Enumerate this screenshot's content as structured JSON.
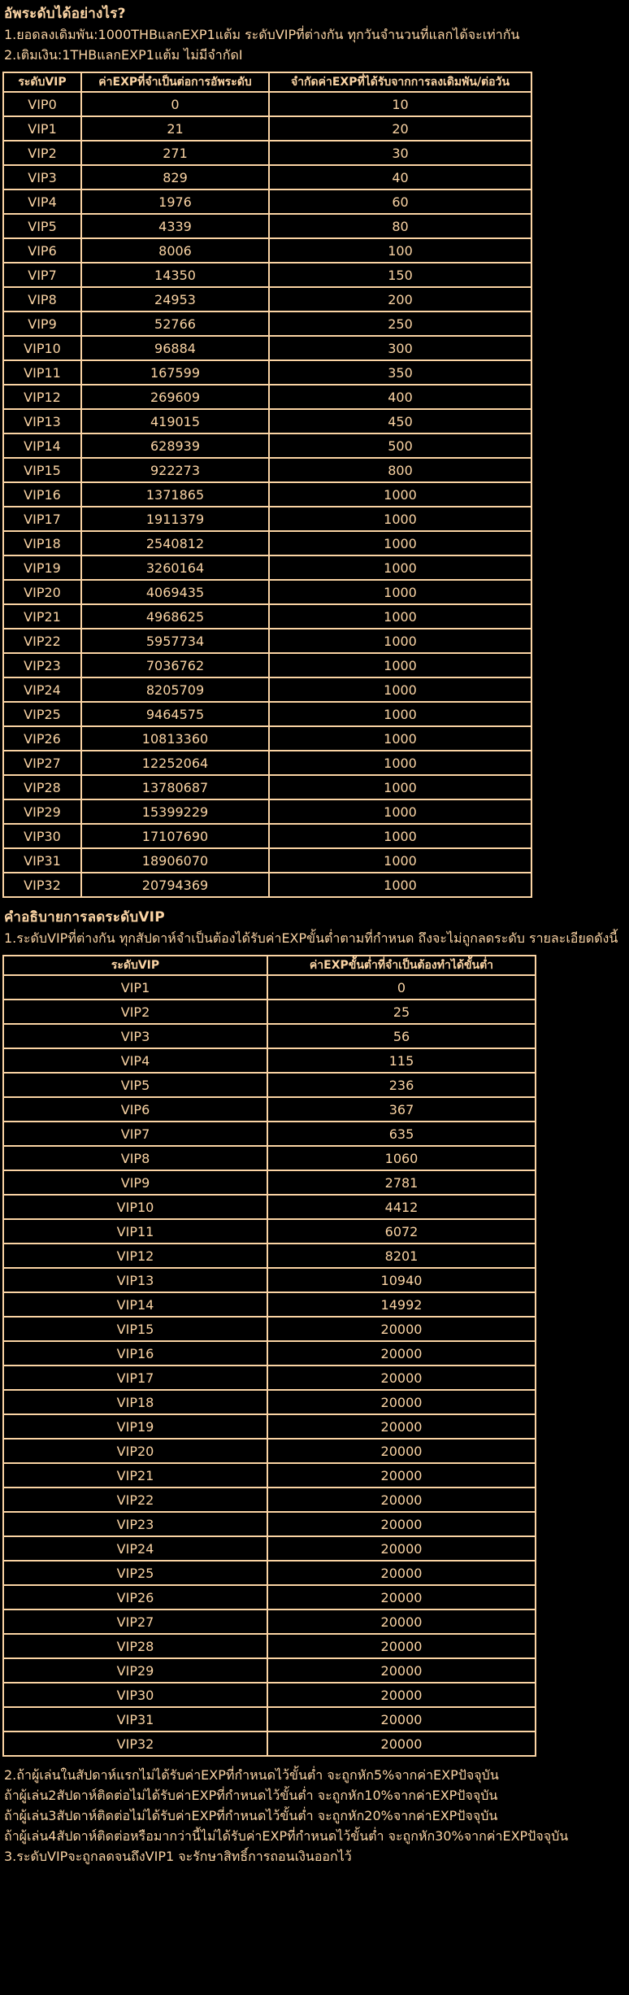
{
  "colors": {
    "background": "#000000",
    "text": "#fbd4a4",
    "table_border": "#fbd4a4"
  },
  "intro": {
    "title": "อัพระดับได้อย่างไร?",
    "lines": [
      "1.ยอดลงเดิมพัน:1000THBแลกEXP1แต้ม ระดับVIPที่ต่างกัน ทุกวันจำนวนที่แลกได้จะเท่ากัน",
      "2.เติมเงิน:1THBแลกEXP1แต้ม ไม่มีจำกัดI"
    ]
  },
  "levelup_table": {
    "headers": [
      "ระดับVIP",
      "ค่าEXPที่จำเป็นต่อการอัพระดับ",
      "จำกัดค่าEXPที่ได้รับจากการลงเดิมพัน/ต่อวัน"
    ],
    "rows": [
      [
        "VIP0",
        "0",
        "10"
      ],
      [
        "VIP1",
        "21",
        "20"
      ],
      [
        "VIP2",
        "271",
        "30"
      ],
      [
        "VIP3",
        "829",
        "40"
      ],
      [
        "VIP4",
        "1976",
        "60"
      ],
      [
        "VIP5",
        "4339",
        "80"
      ],
      [
        "VIP6",
        "8006",
        "100"
      ],
      [
        "VIP7",
        "14350",
        "150"
      ],
      [
        "VIP8",
        "24953",
        "200"
      ],
      [
        "VIP9",
        "52766",
        "250"
      ],
      [
        "VIP10",
        "96884",
        "300"
      ],
      [
        "VIP11",
        "167599",
        "350"
      ],
      [
        "VIP12",
        "269609",
        "400"
      ],
      [
        "VIP13",
        "419015",
        "450"
      ],
      [
        "VIP14",
        "628939",
        "500"
      ],
      [
        "VIP15",
        "922273",
        "800"
      ],
      [
        "VIP16",
        "1371865",
        "1000"
      ],
      [
        "VIP17",
        "1911379",
        "1000"
      ],
      [
        "VIP18",
        "2540812",
        "1000"
      ],
      [
        "VIP19",
        "3260164",
        "1000"
      ],
      [
        "VIP20",
        "4069435",
        "1000"
      ],
      [
        "VIP21",
        "4968625",
        "1000"
      ],
      [
        "VIP22",
        "5957734",
        "1000"
      ],
      [
        "VIP23",
        "7036762",
        "1000"
      ],
      [
        "VIP24",
        "8205709",
        "1000"
      ],
      [
        "VIP25",
        "9464575",
        "1000"
      ],
      [
        "VIP26",
        "10813360",
        "1000"
      ],
      [
        "VIP27",
        "12252064",
        "1000"
      ],
      [
        "VIP28",
        "13780687",
        "1000"
      ],
      [
        "VIP29",
        "15399229",
        "1000"
      ],
      [
        "VIP30",
        "17107690",
        "1000"
      ],
      [
        "VIP31",
        "18906070",
        "1000"
      ],
      [
        "VIP32",
        "20794369",
        "1000"
      ]
    ]
  },
  "demote": {
    "title": "คำอธิบายการลดระดับVIP",
    "line": "1.ระดับVIPที่ต่างกัน ทุกสัปดาห์จำเป็นต้องได้รับค่าEXPขั้นต่ำตามที่กำหนด ถึงจะไม่ถูกลดระดับ รายละเอียดดังนี้"
  },
  "weekly_table": {
    "headers": [
      "ระดับVIP",
      "ค่าEXPขั้นต่ำที่จำเป็นต้องทำได้ขั้นต่ำ"
    ],
    "rows": [
      [
        "VIP1",
        "0"
      ],
      [
        "VIP2",
        "25"
      ],
      [
        "VIP3",
        "56"
      ],
      [
        "VIP4",
        "115"
      ],
      [
        "VIP5",
        "236"
      ],
      [
        "VIP6",
        "367"
      ],
      [
        "VIP7",
        "635"
      ],
      [
        "VIP8",
        "1060"
      ],
      [
        "VIP9",
        "2781"
      ],
      [
        "VIP10",
        "4412"
      ],
      [
        "VIP11",
        "6072"
      ],
      [
        "VIP12",
        "8201"
      ],
      [
        "VIP13",
        "10940"
      ],
      [
        "VIP14",
        "14992"
      ],
      [
        "VIP15",
        "20000"
      ],
      [
        "VIP16",
        "20000"
      ],
      [
        "VIP17",
        "20000"
      ],
      [
        "VIP18",
        "20000"
      ],
      [
        "VIP19",
        "20000"
      ],
      [
        "VIP20",
        "20000"
      ],
      [
        "VIP21",
        "20000"
      ],
      [
        "VIP22",
        "20000"
      ],
      [
        "VIP23",
        "20000"
      ],
      [
        "VIP24",
        "20000"
      ],
      [
        "VIP25",
        "20000"
      ],
      [
        "VIP26",
        "20000"
      ],
      [
        "VIP27",
        "20000"
      ],
      [
        "VIP28",
        "20000"
      ],
      [
        "VIP29",
        "20000"
      ],
      [
        "VIP30",
        "20000"
      ],
      [
        "VIP31",
        "20000"
      ],
      [
        "VIP32",
        "20000"
      ]
    ]
  },
  "footer": {
    "lines": [
      "2.ถ้าผู้เล่นในสัปดาห์แรกไม่ได้รับค่าEXPที่กำหนดไว้ขั้นต่ำ จะถูกหัก5%จากค่าEXPปัจจุบัน",
      "ถ้าผู้เล่น2สัปดาห์ติดต่อไม่ได้รับค่าEXPที่กำหนดไว้ขั้นต่ำ จะถูกหัก10%จากค่าEXPปัจจุบัน",
      "ถ้าผู้เล่น3สัปดาห์ติดต่อไม่ได้รับค่าEXPที่กำหนดไว้ขั้นต่ำ จะถูกหัก20%จากค่าEXPปัจจุบัน",
      "ถ้าผู้เล่น4สัปดาห์ติดต่อหรือมากว่านี้ไม่ได้รับค่าEXPที่กำหนดไว้ขั้นต่ำ จะถูกหัก30%จากค่าEXPปัจจุบัน",
      "3.ระดับVIPจะถูกลดจนถึงVIP1 จะรักษาสิทธิ์การถอนเงินออกไว้"
    ]
  }
}
